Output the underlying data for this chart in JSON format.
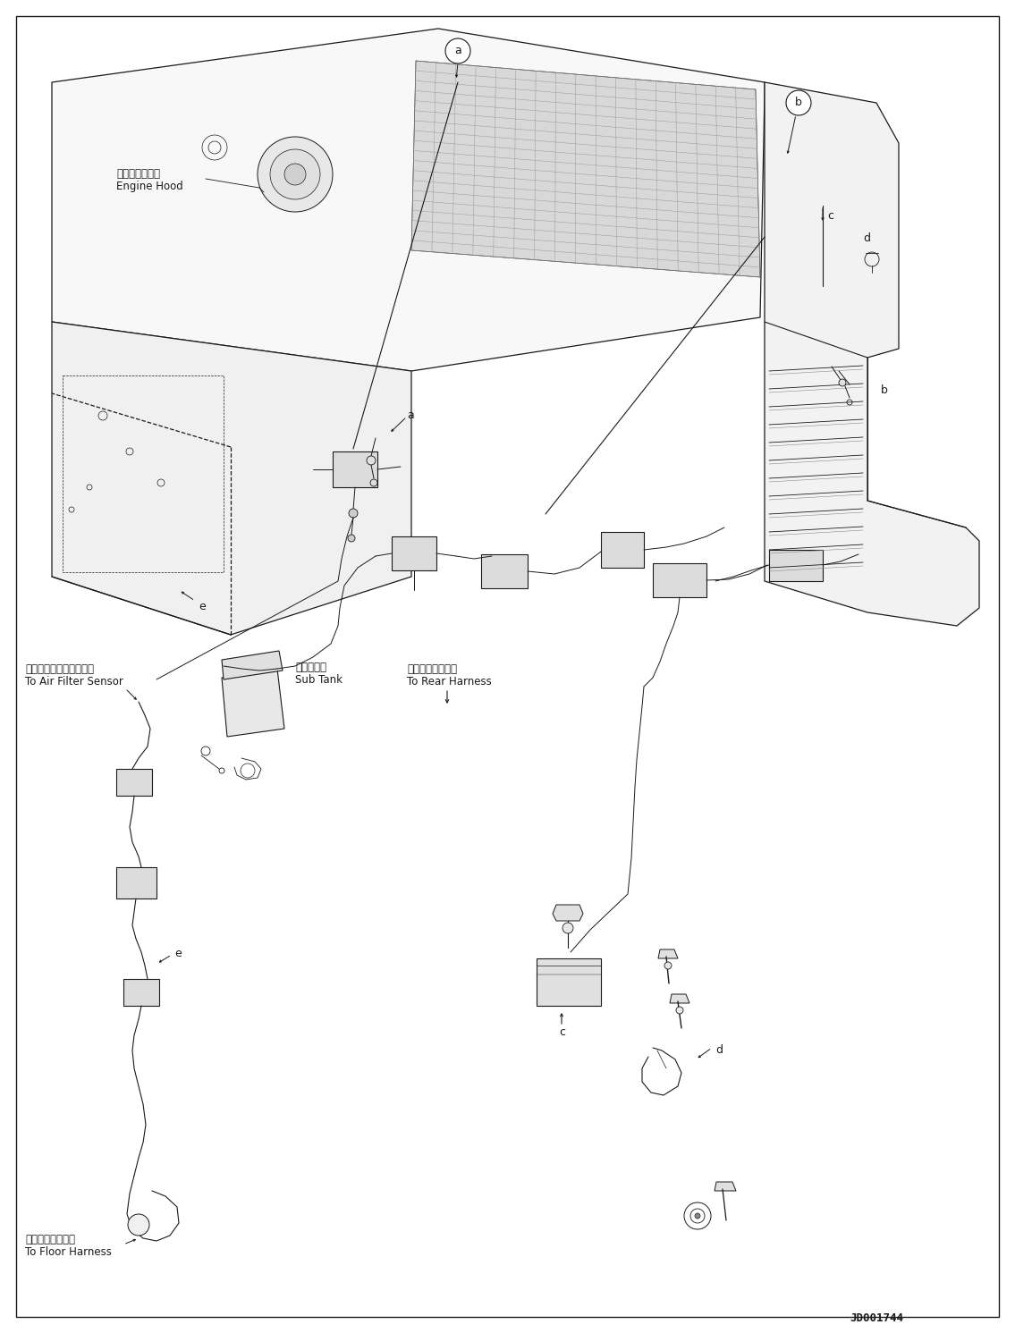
{
  "bg_color": "#ffffff",
  "line_color": "#1a1a1a",
  "fig_width": 11.35,
  "fig_height": 14.91,
  "diagram_id": "JD001744",
  "labels": {
    "engine_hood_jp": "エンジンフード",
    "engine_hood_en": "Engine Hood",
    "air_filter_jp": "エアーフィルタセンサへ",
    "air_filter_en": "To Air Filter Sensor",
    "sub_tank_jp": "サブタンク",
    "sub_tank_en": "Sub Tank",
    "rear_harness_jp": "リヤーハーネスへ",
    "rear_harness_en": "To Rear Harness",
    "floor_harness_jp": "フロアハーネスへ",
    "floor_harness_en": "To Floor Harness"
  }
}
